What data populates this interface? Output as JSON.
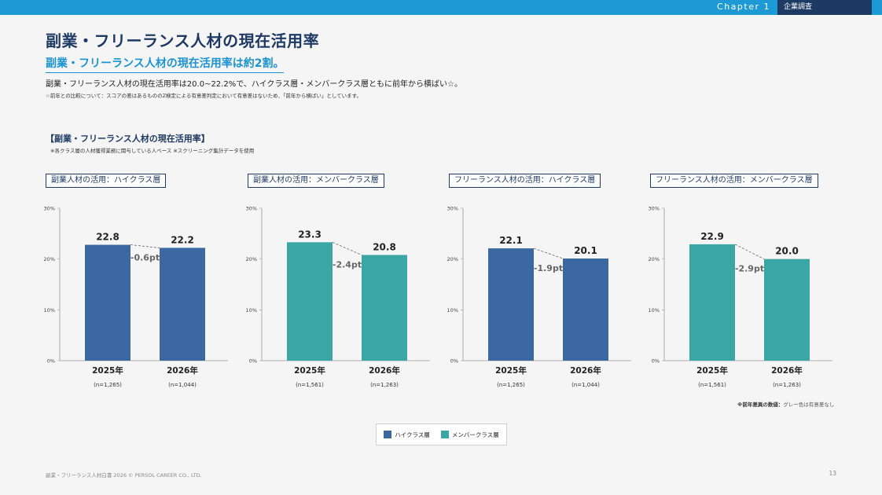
{
  "header": {
    "chapter": "Chapter 1",
    "tag": "企業調査"
  },
  "page": {
    "title": "副業・フリーランス人材の現在活用率",
    "subtitle": "副業・フリーランス人材の現在活用率は約2割。",
    "lead": "副業・フリーランス人材の現在活用率は20.0~22.2%で、ハイクラス層・メンバークラス層ともに前年から横ばい☆。",
    "note": "☆前年との比較について：スコアの差はあるもののZ検定による有意差判定において有意差はないため、「前年から横ばい」としています。",
    "section_title": "【副業・フリーランス人材の現在活用率】",
    "section_note": "※各クラス層の人材獲得業務に関与している人ベース ※スクリーニング集計データを使用",
    "diff_note_bold": "※前年差異の数値：",
    "diff_note_rest": "グレー色は有意差なし",
    "footer": "副業・フリーランス人材白書 2026 © PERSOL CAREER CO., LTD.",
    "page_number": "13"
  },
  "colors": {
    "high": "#3b68a0",
    "member": "#3aa7a5",
    "navy": "#1e3a64",
    "diff_gray": "#666666"
  },
  "legend": [
    {
      "label": "ハイクラス層",
      "color": "#3b68a0"
    },
    {
      "label": "メンバークラス層",
      "color": "#3aa7a5"
    }
  ],
  "chart_data": [
    {
      "type": "bar",
      "title": "副業人材の活用：ハイクラス層",
      "categories": [
        "2025年",
        "2026年"
      ],
      "n_labels": [
        "(n=1,265)",
        "(n=1,044)"
      ],
      "values": [
        22.8,
        22.2
      ],
      "value_labels": [
        "22.8",
        "22.2"
      ],
      "diff_label": "-0.6pt",
      "series": "ハイクラス層",
      "yticks": [
        "0%",
        "10%",
        "20%",
        "30%"
      ],
      "ylim": [
        0,
        30
      ]
    },
    {
      "type": "bar",
      "title": "副業人材の活用：メンバークラス層",
      "categories": [
        "2025年",
        "2026年"
      ],
      "n_labels": [
        "(n=1,561)",
        "(n=1,263)"
      ],
      "values": [
        23.3,
        20.8
      ],
      "value_labels": [
        "23.3",
        "20.8"
      ],
      "diff_label": "-2.4pt",
      "series": "メンバークラス層",
      "yticks": [
        "0%",
        "10%",
        "20%",
        "30%"
      ],
      "ylim": [
        0,
        30
      ]
    },
    {
      "type": "bar",
      "title": "フリーランス人材の活用：ハイクラス層",
      "categories": [
        "2025年",
        "2026年"
      ],
      "n_labels": [
        "(n=1,265)",
        "(n=1,044)"
      ],
      "values": [
        22.1,
        20.1
      ],
      "value_labels": [
        "22.1",
        "20.1"
      ],
      "diff_label": "-1.9pt",
      "series": "ハイクラス層",
      "yticks": [
        "0%",
        "10%",
        "20%",
        "30%"
      ],
      "ylim": [
        0,
        30
      ]
    },
    {
      "type": "bar",
      "title": "フリーランス人材の活用：メンバークラス層",
      "categories": [
        "2025年",
        "2026年"
      ],
      "n_labels": [
        "(n=1,561)",
        "(n=1,263)"
      ],
      "values": [
        22.9,
        20.0
      ],
      "value_labels": [
        "22.9",
        "20.0"
      ],
      "diff_label": "-2.9pt",
      "series": "メンバークラス層",
      "yticks": [
        "0%",
        "10%",
        "20%",
        "30%"
      ],
      "ylim": [
        0,
        30
      ]
    }
  ]
}
